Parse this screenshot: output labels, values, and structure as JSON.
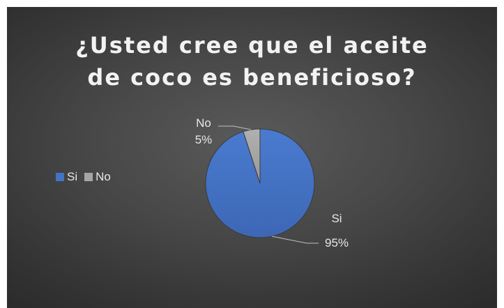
{
  "chart_data": {
    "type": "pie",
    "title": "¿Usted cree que el aceite\nde coco es beneficioso?",
    "categories": [
      "Si",
      "No"
    ],
    "values": [
      95,
      5
    ],
    "colors": [
      "#4472c4",
      "#a5a5a5"
    ],
    "data_labels": [
      {
        "category": "Si",
        "percent": "95%"
      },
      {
        "category": "No",
        "percent": "5%"
      }
    ],
    "legend": {
      "placement": "left",
      "entries": [
        "Si",
        "No"
      ]
    },
    "background": "#3f3f3f"
  }
}
